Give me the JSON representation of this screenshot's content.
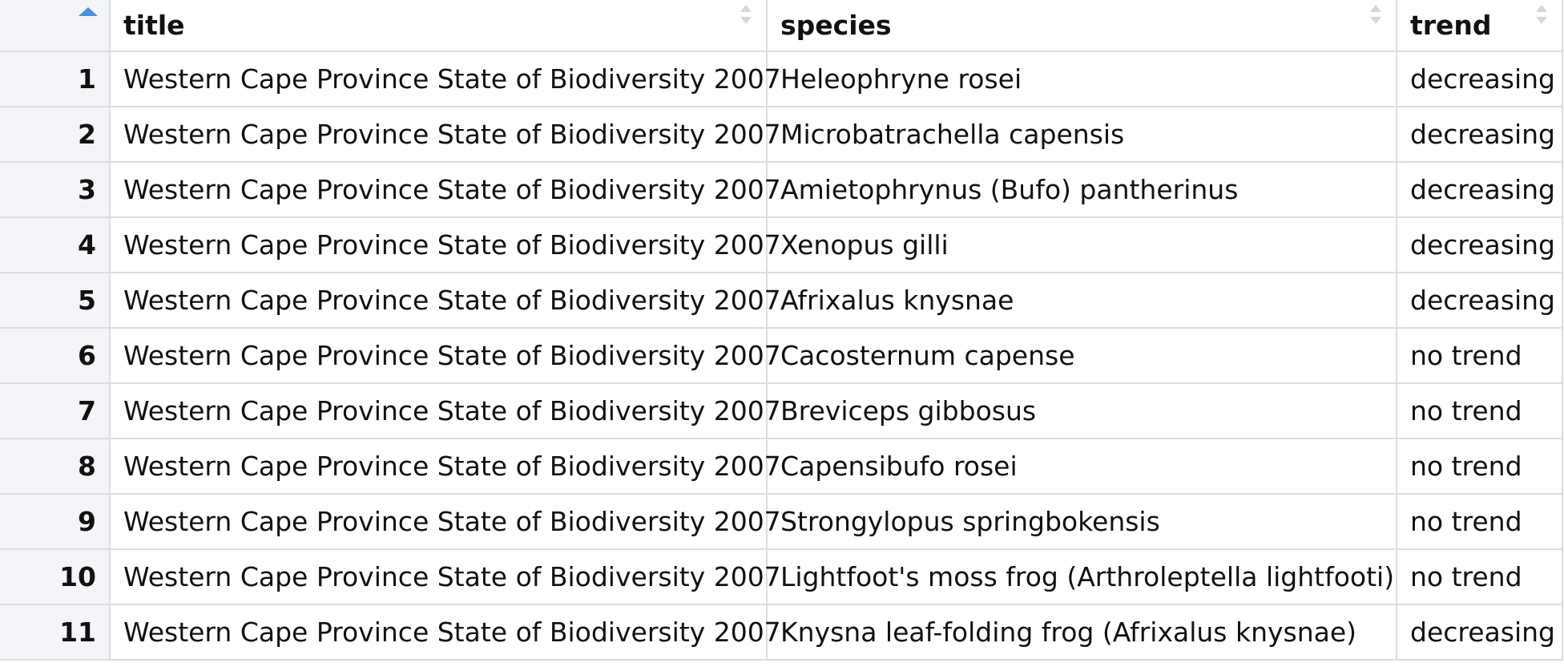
{
  "table": {
    "columns": [
      {
        "label": "",
        "key": "index",
        "sort": "ascending"
      },
      {
        "label": "title",
        "key": "title",
        "sort": "none"
      },
      {
        "label": "species",
        "key": "species",
        "sort": "none"
      },
      {
        "label": "trend",
        "key": "trend",
        "sort": "none"
      }
    ],
    "rows": [
      {
        "index": "1",
        "title": "Western Cape Province State of Biodiversity 2007",
        "species": "Heleophryne rosei",
        "trend": "decreasing"
      },
      {
        "index": "2",
        "title": "Western Cape Province State of Biodiversity 2007",
        "species": "Microbatrachella capensis",
        "trend": "decreasing"
      },
      {
        "index": "3",
        "title": "Western Cape Province State of Biodiversity 2007",
        "species": "Amietophrynus (Bufo) pantherinus",
        "trend": "decreasing"
      },
      {
        "index": "4",
        "title": "Western Cape Province State of Biodiversity 2007",
        "species": "Xenopus gilli",
        "trend": "decreasing"
      },
      {
        "index": "5",
        "title": "Western Cape Province State of Biodiversity 2007",
        "species": "Afrixalus knysnae",
        "trend": "decreasing"
      },
      {
        "index": "6",
        "title": "Western Cape Province State of Biodiversity 2007",
        "species": "Cacosternum capense",
        "trend": "no trend"
      },
      {
        "index": "7",
        "title": "Western Cape Province State of Biodiversity 2007",
        "species": "Breviceps gibbosus",
        "trend": "no trend"
      },
      {
        "index": "8",
        "title": "Western Cape Province State of Biodiversity 2007",
        "species": "Capensibufo rosei",
        "trend": "no trend"
      },
      {
        "index": "9",
        "title": "Western Cape Province State of Biodiversity 2007",
        "species": "Strongylopus springbokensis",
        "trend": "no trend"
      },
      {
        "index": "10",
        "title": "Western Cape Province State of Biodiversity 2007",
        "species": "Lightfoot's moss frog (Arthroleptella lightfooti)",
        "trend": "no trend"
      },
      {
        "index": "11",
        "title": "Western Cape Province State of Biodiversity 2007",
        "species": "Knysna leaf-folding frog (Afrixalus knysnae)",
        "trend": "decreasing"
      }
    ]
  },
  "colors": {
    "sort_active": "#4a90e2",
    "sort_inactive": "#d4d7dc",
    "index_background": "#f3f5f8",
    "grid_line": "#dadde2"
  },
  "icons": {
    "active_sort": "sort-ascending-icon",
    "inactive_sort": "sort-icon"
  }
}
